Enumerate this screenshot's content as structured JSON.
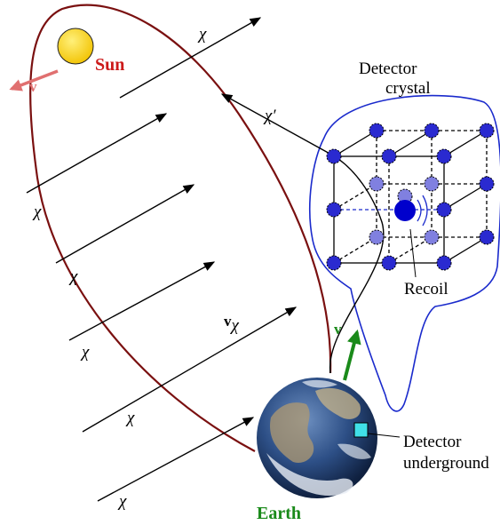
{
  "labels": {
    "sun": "Sun",
    "earth": "Earth",
    "detector_title_line1": "Detector",
    "detector_title_line2": "crystal",
    "recoil": "Recoil",
    "detector_underground_line1": "Detector",
    "detector_underground_line2": "underground",
    "chi": "χ",
    "chi_prime": "χ′",
    "v": "v",
    "v_chi_base": "v",
    "v_chi_sub": "χ"
  },
  "colors": {
    "orbit": "#7a1010",
    "sun_fill": "#ffd700",
    "sun_label": "#cc1a1a",
    "sun_velocity_arrow": "#e07070",
    "earth_velocity_arrow": "#1a8a1a",
    "earth_label": "#1a8a1a",
    "detector_outline": "#1a2acc",
    "lattice_atom": "#2a2ad0",
    "lattice_atom_light": "#8080e0",
    "recoil_nucleus": "#0000cc",
    "detector_marker": "#40e0e8"
  },
  "icons": {
    "sun": "sun-disc",
    "earth": "earth-globe"
  }
}
